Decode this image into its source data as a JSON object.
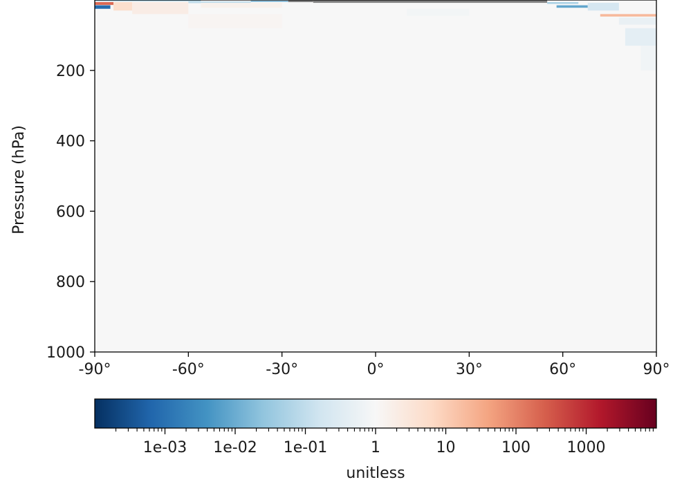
{
  "chart_data": {
    "type": "heatmap",
    "title": "",
    "xlabel": "",
    "ylabel": "Pressure (hPa)",
    "x_range": [
      -90,
      90
    ],
    "y_range": [
      1000,
      0
    ],
    "y_inverted": true,
    "x_ticks": [
      {
        "value": -90,
        "label": "-90°"
      },
      {
        "value": -60,
        "label": "-60°"
      },
      {
        "value": -30,
        "label": "-30°"
      },
      {
        "value": 0,
        "label": "0°"
      },
      {
        "value": 30,
        "label": "30°"
      },
      {
        "value": 60,
        "label": "60°"
      },
      {
        "value": 90,
        "label": "90°"
      }
    ],
    "y_ticks": [
      {
        "value": 200,
        "label": "200"
      },
      {
        "value": 400,
        "label": "400"
      },
      {
        "value": 600,
        "label": "600"
      },
      {
        "value": 800,
        "label": "800"
      },
      {
        "value": 1000,
        "label": "1000"
      }
    ],
    "background_ratio": 1,
    "missing_color": "#808080",
    "cells": [
      {
        "lon0": -90,
        "lon1": -56,
        "p0": 0,
        "p1": 3,
        "ratio": 0.02
      },
      {
        "lon0": -90,
        "lon1": -85,
        "p0": 15,
        "p1": 25,
        "ratio": 0.0008
      },
      {
        "lon0": -90,
        "lon1": -84,
        "p0": 6,
        "p1": 14,
        "ratio": 200
      },
      {
        "lon0": -84,
        "lon1": -78,
        "p0": 6,
        "p1": 30,
        "ratio": 5
      },
      {
        "lon0": -78,
        "lon1": -60,
        "p0": 6,
        "p1": 40,
        "ratio": 2
      },
      {
        "lon0": -60,
        "lon1": -40,
        "p0": 4,
        "p1": 9,
        "ratio": 0.1
      },
      {
        "lon0": -56,
        "lon1": -30,
        "p0": 8,
        "p1": 22,
        "ratio": 1.5
      },
      {
        "lon0": -40,
        "lon1": -28,
        "p0": 2,
        "p1": 5,
        "ratio": 0.01
      },
      {
        "lon0": -28,
        "lon1": -20,
        "p0": 0,
        "p1": 6,
        "ratio": null
      },
      {
        "lon0": -20,
        "lon1": 0,
        "p0": 0,
        "p1": 3,
        "ratio": 50
      },
      {
        "lon0": -20,
        "lon1": 55,
        "p0": 1,
        "p1": 8,
        "ratio": null
      },
      {
        "lon0": 55,
        "lon1": 65,
        "p0": 6,
        "p1": 11,
        "ratio": 0.05
      },
      {
        "lon0": 58,
        "lon1": 68,
        "p0": 15,
        "p1": 22,
        "ratio": 0.008
      },
      {
        "lon0": 68,
        "lon1": 78,
        "p0": 8,
        "p1": 30,
        "ratio": 0.2
      },
      {
        "lon0": 72,
        "lon1": 90,
        "p0": 40,
        "p1": 47,
        "ratio": 20
      },
      {
        "lon0": 78,
        "lon1": 90,
        "p0": 50,
        "p1": 70,
        "ratio": 0.5
      },
      {
        "lon0": 80,
        "lon1": 90,
        "p0": 80,
        "p1": 130,
        "ratio": 0.4
      },
      {
        "lon0": 85,
        "lon1": 90,
        "p0": 130,
        "p1": 200,
        "ratio": 0.7
      },
      {
        "lon0": 10,
        "lon1": 30,
        "p0": 25,
        "p1": 45,
        "ratio": 0.8
      },
      {
        "lon0": -60,
        "lon1": -30,
        "p0": 40,
        "p1": 80,
        "ratio": 1.2
      }
    ],
    "colorbar": {
      "label": "unitless",
      "scale": "log",
      "range": [
        0.0001,
        10000
      ],
      "ticks": [
        {
          "value": 0.001,
          "label": "1e-03"
        },
        {
          "value": 0.01,
          "label": "1e-02"
        },
        {
          "value": 0.1,
          "label": "1e-01"
        },
        {
          "value": 1,
          "label": "1"
        },
        {
          "value": 10,
          "label": "10"
        },
        {
          "value": 100,
          "label": "100"
        },
        {
          "value": 1000,
          "label": "1000"
        }
      ],
      "colormap": "RdBu_r",
      "colors": [
        "#053061",
        "#2166ac",
        "#4393c3",
        "#92c5de",
        "#d1e5f0",
        "#f7f7f7",
        "#fddbc7",
        "#f4a582",
        "#d6604d",
        "#b2182b",
        "#67001f"
      ]
    }
  }
}
